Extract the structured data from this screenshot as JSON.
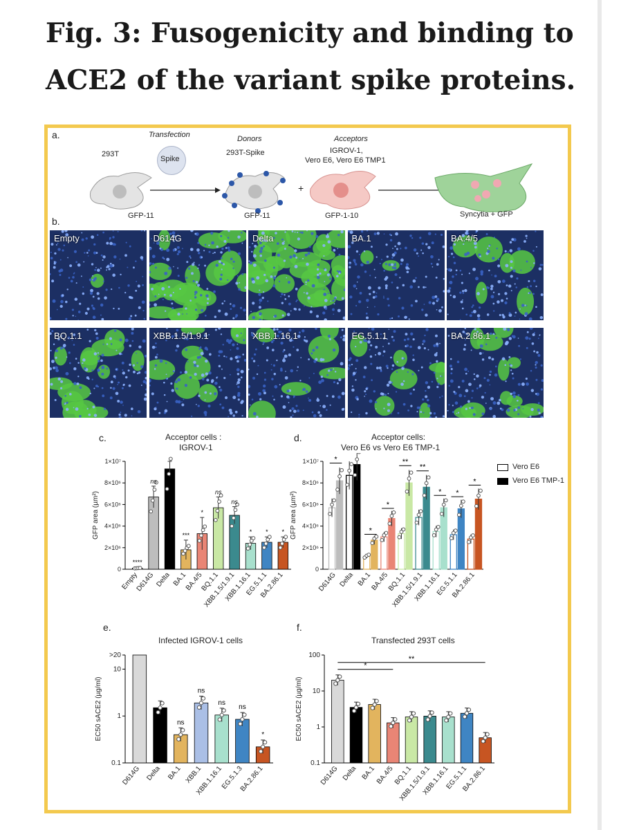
{
  "title": "Fig. 3: Fusogenicity and binding to ACE2 of the variant spike proteins.",
  "colors": {
    "frame": "#f3c94e",
    "blue": "#2c57a8",
    "green": "#57c843"
  },
  "panel_a": {
    "label": "a.",
    "cell_293t": "293T",
    "transfection": "Transfection",
    "spike": "Spike",
    "donors": "Donors",
    "donor_cell": "293T-Spike",
    "acceptors": "Acceptors",
    "acceptor_line1": "IGROV-1,",
    "acceptor_line2": "Vero E6, Vero E6 TMP1",
    "gfp11_a": "GFP-11",
    "gfp11_b": "GFP-11",
    "gfp110": "GFP-1-10",
    "plus": "+",
    "syncytia": "Syncytia + GFP"
  },
  "panel_b": {
    "label": "b.",
    "images": [
      {
        "name": "Empty",
        "green": 0.02
      },
      {
        "name": "D614G",
        "green": 0.55
      },
      {
        "name": "Delta",
        "green": 0.75
      },
      {
        "name": "BA.1",
        "green": 0.05
      },
      {
        "name": "BA.4/5",
        "green": 0.15
      },
      {
        "name": "BQ.1.1",
        "green": 0.35
      },
      {
        "name": "XBB.1.5/1.9.1",
        "green": 0.2
      },
      {
        "name": "XBB.1.16.1",
        "green": 0.15
      },
      {
        "name": "EG.5.1.1",
        "green": 0.18
      },
      {
        "name": "BA.2.86.1",
        "green": 0.28
      }
    ]
  },
  "chart_data": [
    {
      "panel": "c.",
      "type": "bar",
      "title": "Acceptor cells :",
      "subtitle": "IGROV-1",
      "ylabel": "GFP area (µm²)",
      "ylim": [
        0,
        10000000
      ],
      "yticks": [
        "0",
        "2×10⁶",
        "4×10⁶",
        "6×10⁶",
        "8×10⁶",
        "1×10⁷"
      ],
      "categories": [
        "Empty",
        "D614G",
        "Delta",
        "BA.1",
        "BA.4/5",
        "BQ.1.1",
        "XBB.1.5/1.9.1",
        "XBB.1.16.1",
        "EG.5.1.1",
        "BA.2.86.1"
      ],
      "values": [
        100000,
        6700000,
        9300000,
        1800000,
        3300000,
        5700000,
        5000000,
        2400000,
        2500000,
        2500000
      ],
      "errors": [
        100000,
        1000000,
        700000,
        900000,
        1500000,
        1000000,
        800000,
        600000,
        500000,
        500000
      ],
      "significance": [
        "****",
        "ns",
        "",
        "***",
        "*",
        "ns",
        "ns",
        "*",
        "*",
        "*"
      ],
      "colors": [
        "#ffffff",
        "#bdbdbd",
        "#000000",
        "#e2b45e",
        "#e98575",
        "#c9e8a5",
        "#3b8a8e",
        "#a8e0cd",
        "#3f85c3",
        "#c75522"
      ]
    },
    {
      "panel": "d.",
      "type": "bar",
      "title": "Acceptor cells:",
      "subtitle": "Vero E6 vs Vero E6 TMP-1",
      "ylabel": "GFP area (µm²)",
      "ylim": [
        0,
        10000000
      ],
      "yticks": [
        "0",
        "2×10⁶",
        "4×10⁶",
        "6×10⁶",
        "8×10⁶",
        "1×10⁷"
      ],
      "categories": [
        "D614G",
        "Delta",
        "BA.1",
        "BA.4/5",
        "BQ.1.1",
        "XBB.1.5/1.9.1",
        "XBB.1.16.1",
        "EG.5.1.1",
        "BA.2.86.1"
      ],
      "series": [
        {
          "name": "Vero E6",
          "values": [
            5700000,
            8700000,
            1200000,
            3000000,
            3300000,
            4800000,
            3500000,
            3200000,
            2800000
          ]
        },
        {
          "name": "Vero E6 TMP-1",
          "values": [
            8200000,
            9700000,
            2700000,
            4700000,
            8000000,
            7600000,
            5700000,
            5600000,
            6500000
          ]
        }
      ],
      "significance": [
        "*",
        "",
        "*",
        "*",
        "**",
        "**",
        "*",
        "*",
        "*"
      ],
      "colors": [
        "#bdbdbd",
        "#000000",
        "#e2b45e",
        "#e98575",
        "#c9e8a5",
        "#3b8a8e",
        "#a8e0cd",
        "#3f85c3",
        "#c75522"
      ],
      "legend": [
        "Vero E6",
        "Vero E6 TMP-1"
      ],
      "legend_position": "right"
    },
    {
      "panel": "e.",
      "type": "bar",
      "title": "Infected IGROV-1 cells",
      "ylabel": "EC50 sACE2 (µg/ml)",
      "yscale": "log",
      "ylim": [
        0.1,
        20
      ],
      "yticks": [
        "0.1",
        "1",
        "10",
        ">20"
      ],
      "categories": [
        "D614G",
        "Delta",
        "BA.1",
        "XBB.1",
        "XBB.1.16.1",
        "EG.5.1.3",
        "BA.2.86.1"
      ],
      "values": [
        20,
        1.5,
        0.4,
        1.9,
        1.05,
        0.85,
        0.22
      ],
      "significance": [
        "",
        "",
        "ns",
        "ns",
        "ns",
        "ns",
        "*"
      ],
      "colors": [
        "#d9d9d9",
        "#000000",
        "#e2b45e",
        "#aabfe6",
        "#a8e0cd",
        "#3f85c3",
        "#c75522"
      ]
    },
    {
      "panel": "f.",
      "type": "bar",
      "title": "Transfected 293T cells",
      "ylabel": "EC50 sACE2 (µg/ml)",
      "yscale": "log",
      "ylim": [
        0.1,
        100
      ],
      "yticks": [
        "0.1",
        "1",
        "10",
        "100"
      ],
      "categories": [
        "D614G",
        "Delta",
        "BA.1",
        "BA.4/5",
        "BQ.1.1",
        "XBB.1.5/1.9.1",
        "XBB.1.16.1",
        "EG.5.1.1",
        "BA.2.86.1"
      ],
      "values": [
        20,
        3.5,
        4.2,
        1.3,
        1.9,
        2.0,
        1.9,
        2.4,
        0.5
      ],
      "comparisons": [
        {
          "from": "D614G",
          "to": "BA.4/5",
          "label": "*"
        },
        {
          "from": "D614G",
          "to": "BA.2.86.1",
          "label": "**"
        }
      ],
      "colors": [
        "#d9d9d9",
        "#000000",
        "#e2b45e",
        "#e98575",
        "#c9e8a5",
        "#3b8a8e",
        "#a8e0cd",
        "#3f85c3",
        "#c75522"
      ]
    }
  ]
}
